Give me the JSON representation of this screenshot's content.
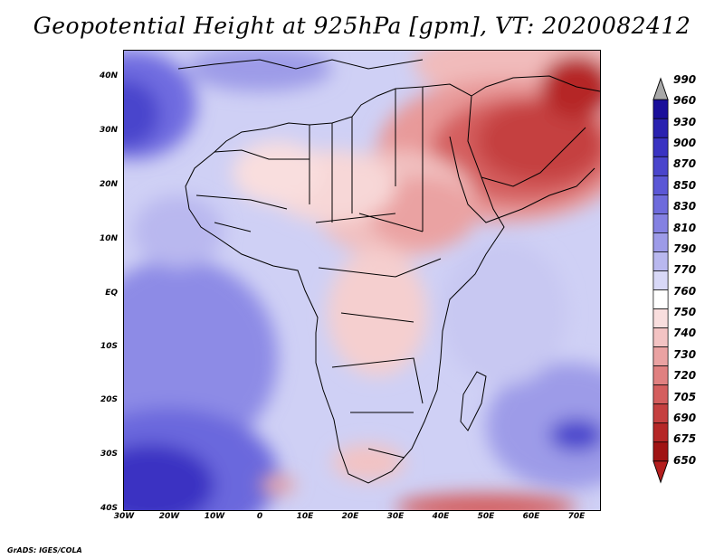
{
  "title": "Geopotential Height at 925hPa [gpm], VT: 2020082412",
  "footer": "GrADS: IGES/COLA",
  "map": {
    "lat_labels": [
      "40N",
      "30N",
      "20N",
      "10N",
      "EQ",
      "10S",
      "20S",
      "30S",
      "40S"
    ],
    "lon_labels": [
      "30W",
      "20W",
      "10W",
      "0",
      "10E",
      "20E",
      "30E",
      "40E",
      "50E",
      "60E",
      "70E"
    ]
  },
  "colorbar": {
    "levels": [
      "990",
      "960",
      "930",
      "900",
      "870",
      "850",
      "830",
      "810",
      "790",
      "770",
      "760",
      "750",
      "740",
      "730",
      "720",
      "705",
      "690",
      "675",
      "650"
    ],
    "colors": [
      "#1a0f9a",
      "#2a22b0",
      "#3a33c2",
      "#4a45cc",
      "#5b57d6",
      "#6e6bdc",
      "#8481e2",
      "#9d9be8",
      "#b9b8ef",
      "#d8d8f7",
      "#ffffff",
      "#f9dede",
      "#f3c3c3",
      "#eaa2a2",
      "#e08080",
      "#d45e5e",
      "#c54040",
      "#b52727",
      "#a01414"
    ],
    "over_color": "#a8a8a8",
    "under_color": "#b41e1e"
  }
}
